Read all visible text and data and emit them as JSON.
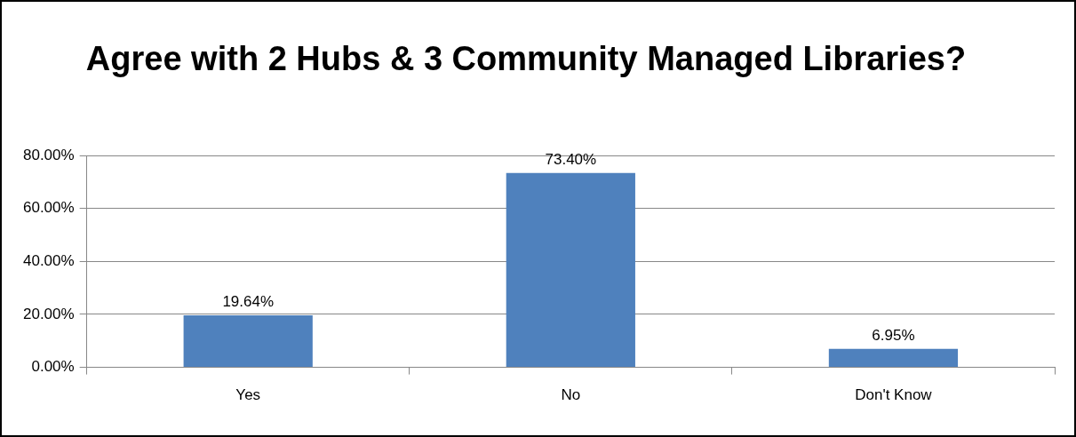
{
  "chart_data": {
    "type": "bar",
    "title": "Agree with 2 Hubs & 3 Community Managed Libraries?",
    "categories": [
      "Yes",
      "No",
      "Don't Know"
    ],
    "values": [
      19.64,
      73.4,
      6.95
    ],
    "value_labels": [
      "19.64%",
      "73.40%",
      "6.95%"
    ],
    "color": "#4f81bd",
    "ylim": [
      0,
      80
    ],
    "yticks": [
      {
        "value": 0,
        "label": "0.00%"
      },
      {
        "value": 20,
        "label": "20.00%"
      },
      {
        "value": 40,
        "label": "40.00%"
      },
      {
        "value": 60,
        "label": "60.00%"
      },
      {
        "value": 80,
        "label": "80.00%"
      }
    ],
    "grid": "y",
    "legend": false
  }
}
